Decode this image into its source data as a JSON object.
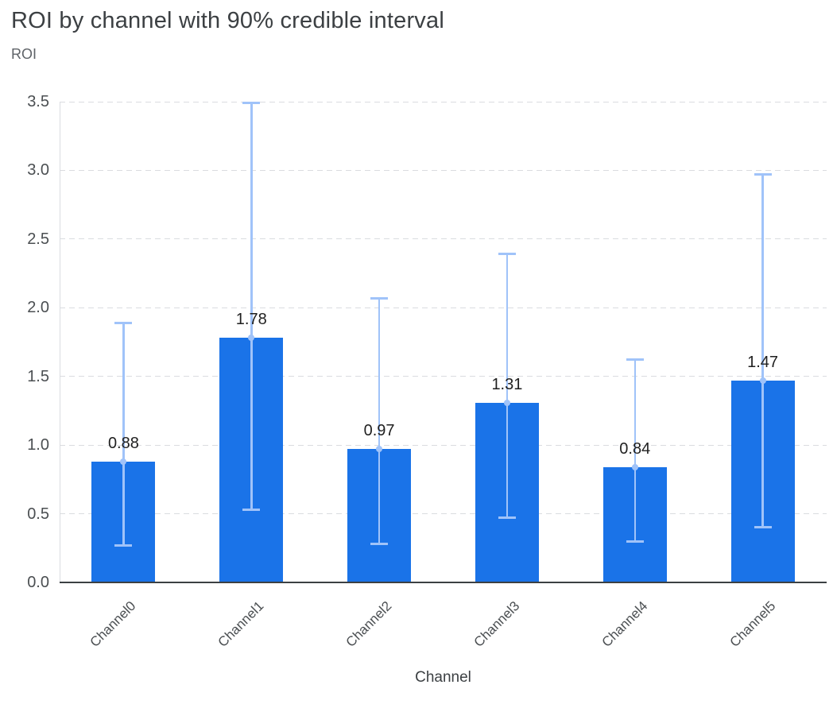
{
  "chart_data": {
    "type": "bar",
    "title": "ROI by channel with 90% credible interval",
    "xlabel": "Channel",
    "ylabel": "ROI",
    "categories": [
      "Channel0",
      "Channel1",
      "Channel2",
      "Channel3",
      "Channel4",
      "Channel5"
    ],
    "values": [
      0.88,
      1.78,
      0.97,
      1.31,
      0.84,
      1.47
    ],
    "bar_labels": [
      "0.88",
      "1.78",
      "0.97",
      "1.31",
      "0.84",
      "1.47"
    ],
    "error_low": [
      0.27,
      0.53,
      0.28,
      0.47,
      0.3,
      0.4
    ],
    "error_high": [
      1.89,
      3.49,
      2.07,
      2.39,
      1.62,
      2.97
    ],
    "ylim": [
      0,
      3.5
    ],
    "ytick_step": 0.5,
    "yticks": [
      "0.0",
      "0.5",
      "1.0",
      "1.5",
      "2.0",
      "2.5",
      "3.0",
      "3.5"
    ],
    "grid": "dashed horizontal",
    "legend": "none",
    "colors": {
      "bar": "#1a73e8",
      "error_bar": "#a0c3f9",
      "grid": "#dadce0",
      "axis_left": "#dadce0",
      "axis_bottom": "#3c4043",
      "title": "#3c4043",
      "tick": "#4b4f52",
      "value_label": "#1f1f1f"
    }
  }
}
